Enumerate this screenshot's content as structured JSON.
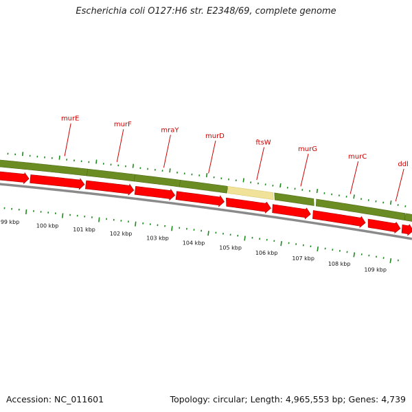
{
  "title": "Escherichia coli O127:H6 str. E2348/69, complete genome",
  "footer": {
    "accession": "Accession: NC_011601",
    "topology": "Topology: circular; Length: 4,965,553 bp; Genes: 4,739"
  },
  "colors": {
    "gene_label": "#cc0000",
    "arrow": "#ff0000",
    "band": "#6b8c23",
    "band_highlight": "#f0e298",
    "backbone": "#888888",
    "tick": "#1a8a1a"
  },
  "genes": [
    {
      "name": "murE",
      "pos": 92
    },
    {
      "name": "murF",
      "pos": 168
    },
    {
      "name": "mraY",
      "pos": 236
    },
    {
      "name": "murD",
      "pos": 301
    },
    {
      "name": "ftsW",
      "pos": 371
    },
    {
      "name": "murG",
      "pos": 435
    },
    {
      "name": "murC",
      "pos": 507
    },
    {
      "name": "ddl",
      "pos": 573
    }
  ],
  "kbp_labels": [
    {
      "text": "99 kbp",
      "pos": 22
    },
    {
      "text": "100 kbp",
      "pos": 77
    },
    {
      "text": "101 kbp",
      "pos": 131
    },
    {
      "text": "102 kbp",
      "pos": 185
    },
    {
      "text": "103 kbp",
      "pos": 239
    },
    {
      "text": "104 kbp",
      "pos": 292
    },
    {
      "text": "105 kbp",
      "pos": 346
    },
    {
      "text": "106 kbp",
      "pos": 399
    },
    {
      "text": "107 kbp",
      "pos": 453
    },
    {
      "text": "108 kbp",
      "pos": 506
    },
    {
      "text": "109 kbp",
      "pos": 559
    }
  ]
}
